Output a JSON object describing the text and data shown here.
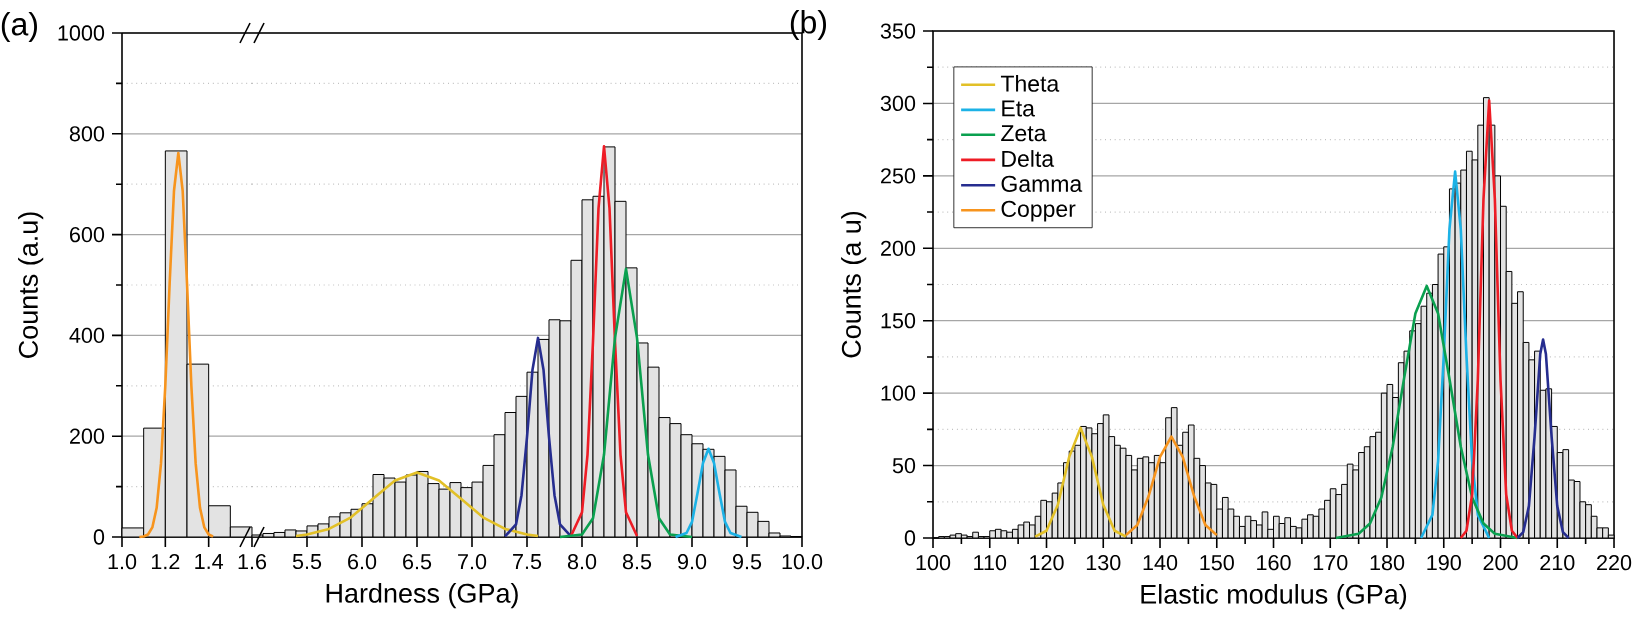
{
  "chart_data": [
    {
      "type": "histogram",
      "title": "(a)",
      "ylabel": "Counts (a.u)",
      "xlim": [
        1.0,
        1.6
      ],
      "ylim": [
        0,
        1000
      ],
      "grid": "y",
      "xticks": [
        {
          "value": 1.0,
          "label": "1.0"
        },
        {
          "value": 1.2,
          "label": "1.2"
        },
        {
          "value": 1.4,
          "label": "1.4"
        },
        {
          "value": 1.6,
          "label": "1.6"
        }
      ],
      "yticks": [
        0,
        200,
        400,
        600,
        800,
        1000
      ],
      "bins": [
        1.0,
        1.1,
        1.2,
        1.3,
        1.4,
        1.5,
        1.6
      ],
      "values": [
        18,
        216,
        766,
        343,
        62,
        20
      ],
      "series": [
        {
          "type": "line",
          "color": "#f7941d",
          "x": [
            1.08,
            1.1,
            1.12,
            1.14,
            1.16,
            1.18,
            1.2,
            1.22,
            1.24,
            1.26,
            1.28,
            1.3,
            1.32,
            1.34,
            1.36,
            1.38,
            1.4,
            1.42
          ],
          "values": [
            0,
            1,
            5,
            19,
            58,
            146,
            301,
            504,
            687,
            762,
            687,
            504,
            301,
            146,
            58,
            19,
            5,
            1
          ]
        }
      ]
    },
    {
      "type": "histogram",
      "xlabel": "Hardness (GPa)",
      "xlim": [
        5.0,
        10.0
      ],
      "ylim": [
        0,
        1000
      ],
      "grid": "y",
      "tick_labels": "x",
      "xticks": [
        {
          "value": 5.5,
          "label": "5.5"
        },
        {
          "value": 6.0,
          "label": "6.0"
        },
        {
          "value": 6.5,
          "label": "6.5"
        },
        {
          "value": 7.0,
          "label": "7.0"
        },
        {
          "value": 7.5,
          "label": "7.5"
        },
        {
          "value": 8.0,
          "label": "8.0"
        },
        {
          "value": 8.5,
          "label": "8.5"
        },
        {
          "value": 9.0,
          "label": "9.0"
        },
        {
          "value": 9.5,
          "label": "9.5"
        },
        {
          "value": 10.0,
          "label": "10.0"
        }
      ],
      "yticks": [
        0,
        200,
        400,
        600,
        800,
        1000
      ],
      "bins": [
        5.0,
        5.1,
        5.2,
        5.3,
        5.4,
        5.5,
        5.6,
        5.7,
        5.8,
        5.9,
        6.0,
        6.1,
        6.2,
        6.3,
        6.4,
        6.5,
        6.6,
        6.7,
        6.8,
        6.9,
        7.0,
        7.1,
        7.2,
        7.3,
        7.4,
        7.5,
        7.6,
        7.7,
        7.8,
        7.9,
        8.0,
        8.1,
        8.2,
        8.3,
        8.4,
        8.5,
        8.6,
        8.7,
        8.8,
        8.9,
        9.0,
        9.1,
        9.2,
        9.3,
        9.4,
        9.5,
        9.6,
        9.7,
        9.8,
        9.9,
        10.0
      ],
      "values": [
        4,
        7,
        9,
        14,
        12,
        22,
        26,
        40,
        48,
        55,
        66,
        124,
        117,
        109,
        123,
        130,
        106,
        95,
        108,
        98,
        109,
        142,
        203,
        247,
        279,
        327,
        392,
        431,
        429,
        549,
        669,
        676,
        774,
        666,
        534,
        385,
        337,
        237,
        225,
        203,
        185,
        174,
        160,
        133,
        61,
        49,
        31,
        8,
        2,
        1
      ],
      "series": [
        {
          "type": "line",
          "color": "#e2c027",
          "x": [
            5.4,
            5.5,
            5.7,
            5.9,
            6.1,
            6.3,
            6.5,
            6.7,
            6.9,
            7.1,
            7.3,
            7.5,
            7.6
          ],
          "values": [
            2,
            5,
            16,
            39,
            76,
            112,
            128,
            112,
            76,
            39,
            16,
            5,
            2
          ]
        },
        {
          "type": "line",
          "color": "#262d8f",
          "x": [
            7.3,
            7.4,
            7.45,
            7.5,
            7.55,
            7.6,
            7.65,
            7.7,
            7.75,
            7.8,
            7.9
          ],
          "values": [
            1,
            25,
            83,
            198,
            332,
            395,
            332,
            198,
            83,
            25,
            1
          ]
        },
        {
          "type": "line",
          "color": "#ee1c25",
          "x": [
            7.9,
            8.0,
            8.05,
            8.1,
            8.15,
            8.2,
            8.25,
            8.3,
            8.35,
            8.4,
            8.5
          ],
          "values": [
            2,
            49,
            163,
            388,
            652,
            775,
            652,
            388,
            163,
            49,
            2
          ]
        },
        {
          "type": "line",
          "color": "#0aa04f",
          "x": [
            7.8,
            8.0,
            8.1,
            8.2,
            8.3,
            8.4,
            8.5,
            8.6,
            8.7,
            8.8,
            9.0
          ],
          "values": [
            0,
            5,
            37,
            163,
            395,
            532,
            395,
            163,
            37,
            5,
            0
          ]
        },
        {
          "type": "line",
          "color": "#1cb2e6",
          "x": [
            8.85,
            8.95,
            9.0,
            9.05,
            9.1,
            9.15,
            9.2,
            9.25,
            9.3,
            9.35,
            9.45
          ],
          "values": [
            0,
            8,
            30,
            87,
            147,
            175,
            147,
            87,
            30,
            8,
            0
          ]
        }
      ]
    },
    {
      "type": "histogram",
      "title": "(b)",
      "xlabel": "Elastic modulus (GPa)",
      "ylabel": "Counts (a u)",
      "xlim": [
        100,
        220
      ],
      "ylim": [
        0,
        350
      ],
      "grid": "y",
      "legend": "top left",
      "xticks": [
        100,
        110,
        120,
        130,
        140,
        150,
        160,
        170,
        180,
        190,
        200,
        210,
        220
      ],
      "yticks": [
        0,
        50,
        100,
        150,
        200,
        250,
        300,
        350
      ],
      "bins": [
        100,
        101,
        102,
        103,
        104,
        105,
        106,
        107,
        108,
        109,
        110,
        111,
        112,
        113,
        114,
        115,
        116,
        117,
        118,
        119,
        120,
        121,
        122,
        123,
        124,
        125,
        126,
        127,
        128,
        129,
        130,
        131,
        132,
        133,
        134,
        135,
        136,
        137,
        138,
        139,
        140,
        141,
        142,
        143,
        144,
        145,
        146,
        147,
        148,
        149,
        150,
        151,
        152,
        153,
        154,
        155,
        156,
        157,
        158,
        159,
        160,
        161,
        162,
        163,
        164,
        165,
        166,
        167,
        168,
        169,
        170,
        171,
        172,
        173,
        174,
        175,
        176,
        177,
        178,
        179,
        180,
        181,
        182,
        183,
        184,
        185,
        186,
        187,
        188,
        189,
        190,
        191,
        192,
        193,
        194,
        195,
        196,
        197,
        198,
        199,
        200,
        201,
        202,
        203,
        204,
        205,
        206,
        207,
        208,
        209,
        210,
        211,
        212,
        213,
        214,
        215,
        216,
        217,
        218,
        219,
        220
      ],
      "values": [
        0,
        1,
        1,
        2,
        3,
        2,
        1,
        4,
        1,
        1,
        5,
        6,
        5,
        4,
        6,
        9,
        11,
        9,
        15,
        26,
        25,
        31,
        38,
        52,
        60,
        64,
        77,
        76,
        72,
        79,
        85,
        70,
        64,
        62,
        57,
        47,
        55,
        56,
        52,
        57,
        52,
        83,
        90,
        64,
        73,
        78,
        55,
        50,
        38,
        37,
        20,
        28,
        20,
        15,
        8,
        15,
        12,
        9,
        18,
        6,
        15,
        10,
        14,
        8,
        7,
        13,
        16,
        15,
        20,
        26,
        34,
        30,
        37,
        51,
        47,
        59,
        63,
        70,
        73,
        100,
        106,
        97,
        121,
        129,
        143,
        148,
        160,
        169,
        175,
        196,
        201,
        241,
        245,
        254,
        267,
        261,
        285,
        304,
        285,
        250,
        229,
        184,
        162,
        170,
        135,
        123,
        129,
        102,
        103,
        77,
        59,
        61,
        40,
        39,
        25,
        23,
        15,
        7,
        7,
        2
      ],
      "series": [
        {
          "type": "line",
          "name": "Theta",
          "color": "#e2c027",
          "x": [
            118,
            120,
            122,
            124,
            126,
            128,
            130,
            132,
            134
          ],
          "values": [
            1,
            5,
            23,
            56,
            76,
            56,
            23,
            5,
            1
          ]
        },
        {
          "type": "line",
          "name": "Eta",
          "color": "#1cb2e6",
          "x": [
            186,
            188,
            189,
            190,
            191,
            192,
            193,
            194,
            195,
            196,
            198
          ],
          "values": [
            0,
            16,
            53,
            126,
            213,
            253,
            213,
            126,
            53,
            16,
            0
          ]
        },
        {
          "type": "line",
          "name": "Zeta",
          "color": "#0aa04f",
          "x": [
            171,
            175,
            177,
            179,
            181,
            183,
            185,
            187,
            189,
            191,
            193,
            195,
            197,
            199,
            203
          ],
          "values": [
            0,
            3,
            10,
            28,
            63,
            110,
            155,
            174,
            155,
            110,
            63,
            28,
            10,
            3,
            0
          ]
        },
        {
          "type": "line",
          "name": "Delta",
          "color": "#ee1c25",
          "x": [
            193,
            194,
            195,
            196,
            197,
            198,
            199,
            200,
            201,
            202,
            203
          ],
          "values": [
            0,
            5,
            30,
            109,
            234,
            302,
            234,
            109,
            30,
            5,
            0
          ]
        },
        {
          "type": "line",
          "name": "Gamma",
          "color": "#262d8f",
          "x": [
            203,
            204,
            205,
            206,
            207,
            207.5,
            208,
            209,
            210,
            211,
            212
          ],
          "values": [
            0,
            4,
            22,
            70,
            127,
            137,
            127,
            70,
            22,
            4,
            0
          ]
        },
        {
          "type": "line",
          "name": "Copper",
          "color": "#f7941d",
          "x": [
            134,
            136,
            138,
            140,
            142,
            144,
            146,
            148,
            150
          ],
          "values": [
            2,
            9,
            29,
            56,
            70,
            56,
            29,
            9,
            2
          ]
        }
      ]
    }
  ]
}
